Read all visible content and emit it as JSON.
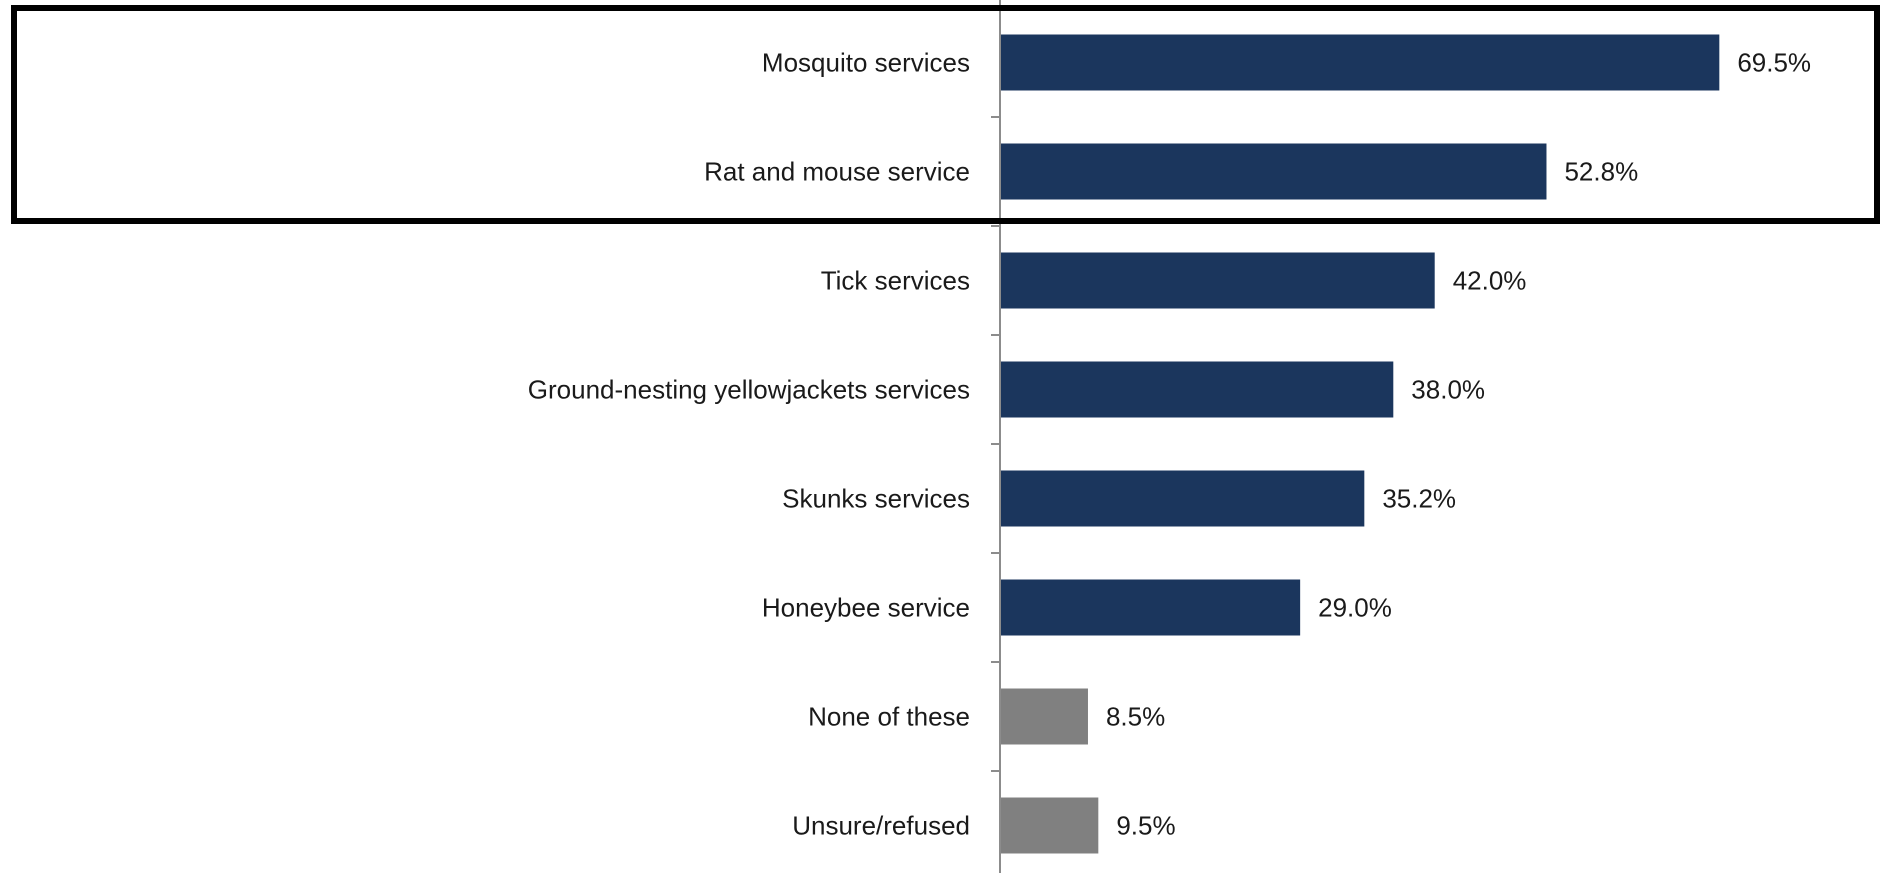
{
  "chart_data": {
    "type": "bar",
    "orientation": "horizontal",
    "categories": [
      "Mosquito services",
      "Rat and mouse service",
      "Tick services",
      "Ground-nesting yellowjackets services",
      "Skunks services",
      "Honeybee service",
      "None of these",
      "Unsure/refused"
    ],
    "values": [
      69.5,
      52.8,
      42.0,
      38.0,
      35.2,
      29.0,
      8.5,
      9.5
    ],
    "value_labels": [
      "69.5%",
      "52.8%",
      "42.0%",
      "38.0%",
      "35.2%",
      "29.0%",
      "8.5%",
      "9.5%"
    ],
    "bar_colors": [
      "#1b365d",
      "#1b365d",
      "#1b365d",
      "#1b365d",
      "#1b365d",
      "#1b365d",
      "#808080",
      "#808080"
    ],
    "xlim": [
      0,
      100
    ],
    "grid": false,
    "title": "",
    "xlabel": "",
    "ylabel": "",
    "highlighted_categories": [
      "Mosquito services",
      "Rat and mouse service"
    ],
    "highlight_color": "#000000"
  }
}
